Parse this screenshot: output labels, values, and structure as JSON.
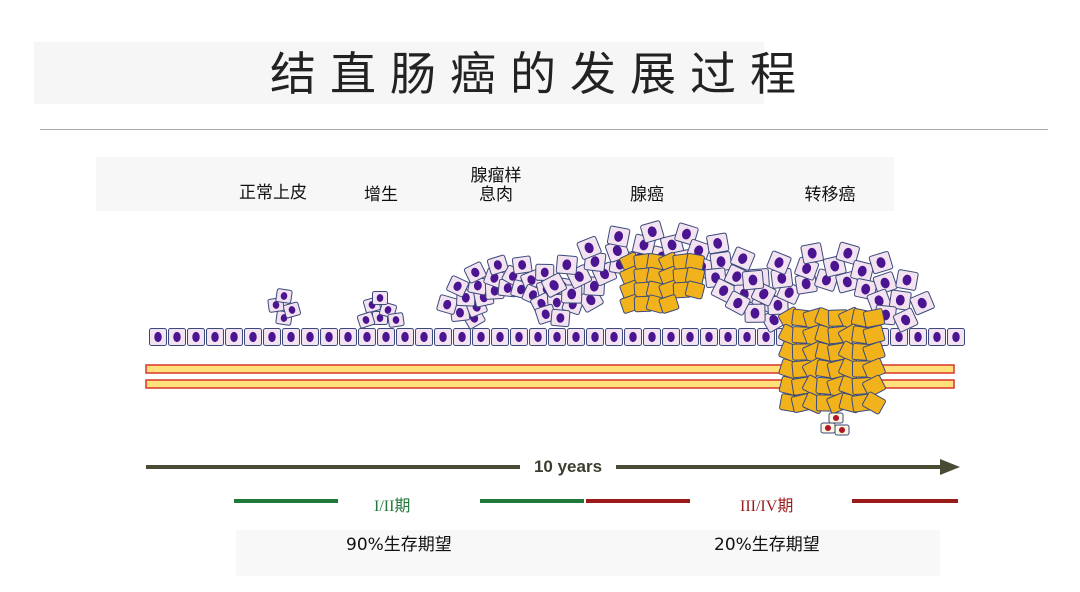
{
  "title": "结直肠癌的发展过程",
  "stages": [
    {
      "line1": "正常上皮",
      "line2": ""
    },
    {
      "line1": "增生",
      "line2": ""
    },
    {
      "line1": "腺瘤样",
      "line2": "息肉"
    },
    {
      "line1": "腺癌",
      "line2": ""
    },
    {
      "line1": "转移癌",
      "line2": ""
    }
  ],
  "timeline_label": "10 years",
  "stage_tags": {
    "early": "I/II期",
    "late": "III/IV期"
  },
  "survival": {
    "early": "90%生存期望",
    "late": "20%生存期望"
  },
  "colors": {
    "early_line": "#1f7a3a",
    "late_line": "#9b1b1b",
    "arrow": "#4a4a35",
    "tumor": "#f2b21c",
    "nucleus": "#4b1490",
    "cell": "#f3e3f1"
  }
}
